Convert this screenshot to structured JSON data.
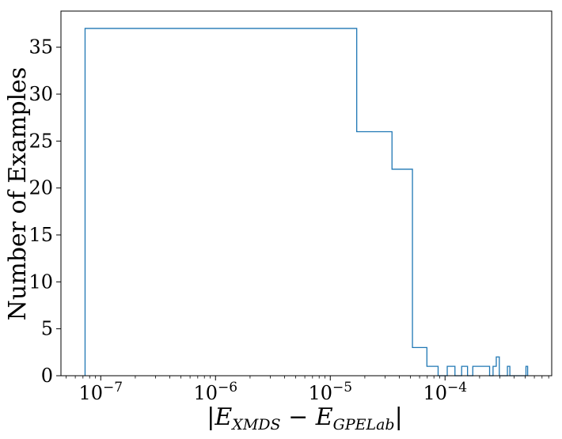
{
  "chart_data": {
    "type": "histogram",
    "title": "",
    "xlabel": "|E_XMDS − E_GPELab|",
    "xlabel_parts": {
      "bar_left": "|",
      "E": "E",
      "sub1": "XMDS",
      "minus": " − ",
      "E2": "E",
      "sub2": "GPELab",
      "bar_right": "|"
    },
    "ylabel": "Number of Examples",
    "xscale": "log",
    "xlim": [
      4.5e-08,
      0.00085
    ],
    "ylim": [
      0,
      38.85
    ],
    "x_ticks": [
      {
        "value": 1e-07,
        "base": "10",
        "exp": "−7"
      },
      {
        "value": 1e-06,
        "base": "10",
        "exp": "−6"
      },
      {
        "value": 1e-05,
        "base": "10",
        "exp": "−5"
      },
      {
        "value": 0.0001,
        "base": "10",
        "exp": "−4"
      }
    ],
    "y_ticks": [
      "0",
      "5",
      "10",
      "15",
      "20",
      "25",
      "30",
      "35"
    ],
    "grid": false,
    "series_color": "#1f77b4",
    "bins": [
      {
        "x0": 7.3e-08,
        "x1": 1.7e-05,
        "count": 37
      },
      {
        "x0": 1.7e-05,
        "x1": 3.45e-05,
        "count": 26
      },
      {
        "x0": 3.45e-05,
        "x1": 5.2e-05,
        "count": 22
      },
      {
        "x0": 5.2e-05,
        "x1": 6.95e-05,
        "count": 3
      },
      {
        "x0": 6.95e-05,
        "x1": 8.7e-05,
        "count": 1
      },
      {
        "x0": 8.7e-05,
        "x1": 0.0001045,
        "count": 0
      },
      {
        "x0": 0.0001045,
        "x1": 0.000122,
        "count": 1
      },
      {
        "x0": 0.000122,
        "x1": 0.0001395,
        "count": 0
      },
      {
        "x0": 0.0001395,
        "x1": 0.000157,
        "count": 1
      },
      {
        "x0": 0.000157,
        "x1": 0.0001745,
        "count": 0
      },
      {
        "x0": 0.0001745,
        "x1": 0.000192,
        "count": 1
      },
      {
        "x0": 0.000192,
        "x1": 0.0002095,
        "count": 1
      },
      {
        "x0": 0.0002095,
        "x1": 0.000227,
        "count": 1
      },
      {
        "x0": 0.000227,
        "x1": 0.0002445,
        "count": 1
      },
      {
        "x0": 0.0002445,
        "x1": 0.000262,
        "count": 0
      },
      {
        "x0": 0.000262,
        "x1": 0.0002795,
        "count": 1
      },
      {
        "x0": 0.0002795,
        "x1": 0.000297,
        "count": 2
      },
      {
        "x0": 0.000297,
        "x1": 0.0003145,
        "count": 0
      },
      {
        "x0": 0.0003145,
        "x1": 0.000332,
        "count": 0
      },
      {
        "x0": 0.000332,
        "x1": 0.0003495,
        "count": 0
      },
      {
        "x0": 0.0003495,
        "x1": 0.000367,
        "count": 1
      },
      {
        "x0": 0.000367,
        "x1": 0.0003845,
        "count": 0
      },
      {
        "x0": 0.0003845,
        "x1": 0.000402,
        "count": 0
      },
      {
        "x0": 0.000402,
        "x1": 0.0004195,
        "count": 0
      },
      {
        "x0": 0.0004195,
        "x1": 0.000437,
        "count": 0
      },
      {
        "x0": 0.000437,
        "x1": 0.0004545,
        "count": 0
      },
      {
        "x0": 0.0004545,
        "x1": 0.000472,
        "count": 0
      },
      {
        "x0": 0.000472,
        "x1": 0.0004895,
        "count": 0
      },
      {
        "x0": 0.0004895,
        "x1": 0.000507,
        "count": 0
      },
      {
        "x0": 0.000507,
        "x1": 0.0005245,
        "count": 1
      }
    ]
  }
}
